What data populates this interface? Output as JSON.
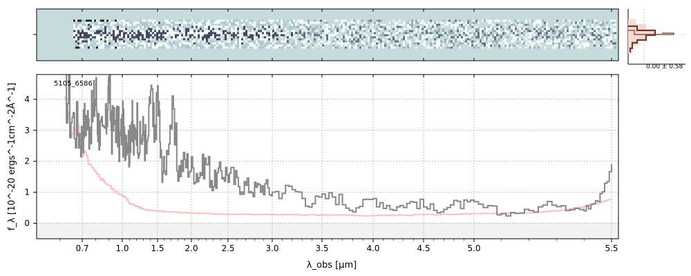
{
  "chart_data": {
    "type": "line",
    "object_id": "5105_6586",
    "xlabel": "λ_obs [μm]",
    "ylabel": "f_λ [10^-20 ergs^-1cm^-2Å^-1]",
    "x_ticks": [
      "0.7",
      "1.0",
      "1.5",
      "2.0",
      "2.5",
      "3.0",
      "3.5",
      "4.0",
      "4.5",
      "5.0",
      "5.5"
    ],
    "y_ticks": [
      "0",
      "1",
      "2",
      "3",
      "4"
    ],
    "ylim": [
      -0.5,
      4.8
    ],
    "x_scale": "nonlinear (prism dispersion)",
    "grid": true,
    "series": [
      {
        "color": "#888888",
        "wavelength": [
          0.62,
          0.65,
          0.68,
          0.7,
          0.72,
          0.75,
          0.78,
          0.8,
          0.82,
          0.85,
          0.88,
          0.9,
          0.92,
          0.95,
          0.98,
          1.0,
          1.03,
          1.06,
          1.1,
          1.13,
          1.16,
          1.2,
          1.25,
          1.3,
          1.35,
          1.4,
          1.45,
          1.5,
          1.55,
          1.6,
          1.7,
          1.8,
          1.9,
          2.0,
          2.1,
          2.2,
          2.3,
          2.4,
          2.5,
          2.6,
          2.7,
          2.8,
          2.9,
          3.0,
          3.2,
          3.4,
          3.6,
          3.8,
          4.0,
          4.2,
          4.4,
          4.6,
          4.8,
          5.0,
          5.1,
          5.2,
          5.3,
          5.4,
          5.45,
          5.5
        ],
        "flux": [
          4.8,
          3.5,
          3.0,
          2.7,
          3.5,
          3.1,
          3.6,
          4.2,
          3.2,
          2.6,
          3.3,
          4.6,
          3.0,
          3.4,
          2.6,
          3.2,
          2.5,
          3.0,
          2.4,
          3.4,
          2.5,
          3.4,
          2.6,
          3.0,
          2.2,
          4.4,
          2.5,
          4.2,
          2.0,
          1.6,
          3.5,
          1.7,
          2.0,
          1.8,
          1.6,
          2.0,
          1.3,
          1.7,
          1.6,
          1.3,
          1.2,
          1.1,
          1.2,
          1.0,
          1.1,
          0.7,
          0.9,
          0.5,
          0.8,
          0.5,
          0.7,
          0.4,
          0.6,
          0.6,
          0.3,
          0.4,
          0.7,
          0.4,
          0.9,
          1.9
        ]
      },
      {
        "color": "#ffc0c0",
        "wavelength": [
          0.62,
          0.65,
          0.68,
          0.7,
          0.72,
          0.75,
          0.8,
          0.85,
          0.9,
          0.95,
          1.0,
          1.05,
          1.1,
          1.2,
          1.3,
          1.4,
          1.5,
          1.6,
          1.8,
          2.0,
          2.2,
          2.4,
          2.6,
          2.8,
          3.0,
          3.3,
          3.6,
          4.0,
          4.4,
          4.8,
          5.0,
          5.2,
          5.3,
          5.4,
          5.45,
          5.5
        ],
        "flux": [
          4.1,
          2.9,
          3.2,
          2.2,
          2.3,
          1.9,
          1.6,
          1.4,
          1.2,
          1.0,
          0.9,
          0.8,
          0.65,
          0.55,
          0.45,
          0.42,
          0.4,
          0.38,
          0.35,
          0.33,
          0.31,
          0.3,
          0.29,
          0.28,
          0.28,
          0.27,
          0.26,
          0.25,
          0.27,
          0.29,
          0.31,
          0.33,
          0.4,
          0.55,
          0.65,
          0.8
        ]
      }
    ],
    "inset_label": "0.00 ± 0.58",
    "colors": {
      "spectrum": "#888888",
      "model": "#ffc0c0",
      "twod_background": "#c6dcdc",
      "twod_trace": "#2a2f4a",
      "profile_fill": "#fbd4cf",
      "profile_line": "#6b3a2c"
    }
  }
}
